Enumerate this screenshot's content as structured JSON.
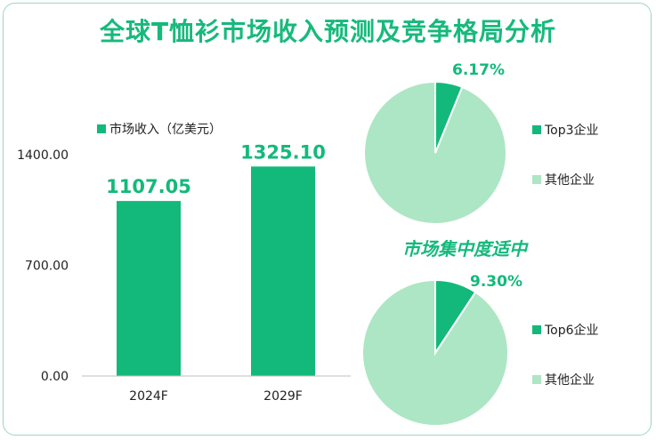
{
  "title": "全球T恤衫市场收入预测及竞争格局分析",
  "subtitle": "市场集中度适中",
  "colors": {
    "primary": "#13b97b",
    "light": "#ade6c4",
    "title": "#17b97c",
    "text": "#222222"
  },
  "chart_data": [
    {
      "type": "bar",
      "categories": [
        "2024F",
        "2029F"
      ],
      "values": [
        1107.05,
        1325.1
      ],
      "value_labels": [
        "1107.05",
        "1325.10"
      ],
      "legend": "市场收入（亿美元）",
      "ylim": [
        0,
        1400
      ],
      "yticks": [
        "0.00",
        "700.00",
        "1400.00"
      ],
      "legend_position": "top-left"
    },
    {
      "type": "pie",
      "labels": [
        "Top3企业",
        "其他企业"
      ],
      "values": [
        6.17,
        93.83
      ],
      "value_label": "6.17%",
      "legend_position": "right"
    },
    {
      "type": "pie",
      "labels": [
        "Top6企业",
        "其他企业"
      ],
      "values": [
        9.3,
        90.7
      ],
      "value_label": "9.30%",
      "legend_position": "right"
    }
  ]
}
